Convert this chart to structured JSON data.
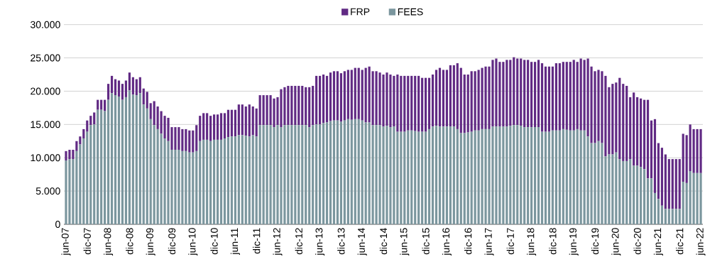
{
  "chart_data": {
    "type": "bar",
    "stacked": true,
    "grid": "y",
    "legend": "top",
    "categories": [
      "jun-07",
      null,
      null,
      null,
      null,
      null,
      "dic-07",
      null,
      null,
      null,
      null,
      null,
      "jun-08",
      null,
      null,
      null,
      null,
      null,
      "dic-08",
      null,
      null,
      null,
      null,
      null,
      "jun-09",
      null,
      null,
      null,
      null,
      null,
      "dic-09",
      null,
      null,
      null,
      null,
      null,
      "jun-10",
      null,
      null,
      null,
      null,
      null,
      "dic-10",
      null,
      null,
      null,
      null,
      null,
      "jun-11",
      null,
      null,
      null,
      null,
      null,
      "dic-11",
      null,
      null,
      null,
      null,
      null,
      "jun-12",
      null,
      null,
      null,
      null,
      null,
      "dic-12",
      null,
      null,
      null,
      null,
      null,
      "jun-13",
      null,
      null,
      null,
      null,
      null,
      "dic-13",
      null,
      null,
      null,
      null,
      null,
      "jun-14",
      null,
      null,
      null,
      null,
      null,
      "dic-14",
      null,
      null,
      null,
      null,
      null,
      "jun-15",
      null,
      null,
      null,
      null,
      null,
      "dic-15",
      null,
      null,
      null,
      null,
      null,
      "jun-16",
      null,
      null,
      null,
      null,
      null,
      "dic-16",
      null,
      null,
      null,
      null,
      null,
      "jun-17",
      null,
      null,
      null,
      null,
      null,
      "dic-17",
      null,
      null,
      null,
      null,
      null,
      "jun-18",
      null,
      null,
      null,
      null,
      null,
      "dic-18",
      null,
      null,
      null,
      null,
      null,
      "jun-19",
      null,
      null,
      null,
      null,
      null,
      "dic-19",
      null,
      null,
      null,
      null,
      null,
      "jun-20",
      null,
      null,
      null,
      null,
      null,
      "dic-20",
      null,
      null,
      null,
      null,
      null,
      "jun-21",
      null,
      null,
      null,
      null,
      null,
      "dic-21",
      null,
      null,
      null,
      null,
      null,
      "jun-22"
    ],
    "ylim": [
      0,
      30000
    ],
    "yticks": [
      {
        "value": 0,
        "label": "0"
      },
      {
        "value": 5000,
        "label": "5.000"
      },
      {
        "value": 10000,
        "label": "10.000"
      },
      {
        "value": 15000,
        "label": "15.000"
      },
      {
        "value": 20000,
        "label": "20.000"
      },
      {
        "value": 25000,
        "label": "25.000"
      },
      {
        "value": 30000,
        "label": "30.000"
      }
    ],
    "series": [
      {
        "name": "FEES",
        "color": "#7b969e",
        "values": [
          9600,
          9800,
          9800,
          11000,
          12000,
          12900,
          13900,
          14900,
          15000,
          17200,
          17200,
          17000,
          18700,
          19700,
          19400,
          19200,
          18700,
          19100,
          20100,
          19500,
          19400,
          19700,
          18000,
          17400,
          15800,
          14900,
          14300,
          13600,
          12900,
          12500,
          11200,
          11200,
          11200,
          11000,
          11000,
          10800,
          10800,
          11000,
          12500,
          12700,
          12700,
          12500,
          12700,
          12700,
          12700,
          12900,
          13100,
          13200,
          13200,
          13400,
          13400,
          13300,
          13200,
          13400,
          13200,
          14900,
          14900,
          14900,
          14900,
          14600,
          14900,
          14600,
          14900,
          14900,
          14900,
          14900,
          14900,
          14900,
          14900,
          14600,
          14900,
          15000,
          15000,
          15200,
          15300,
          15500,
          15600,
          15600,
          15400,
          15600,
          15800,
          15700,
          15800,
          15800,
          15600,
          15300,
          15300,
          14900,
          14900,
          14900,
          14700,
          14800,
          14600,
          14700,
          13900,
          13900,
          13900,
          14100,
          14100,
          14000,
          13900,
          13900,
          13900,
          14300,
          14700,
          14800,
          14700,
          14700,
          14700,
          14700,
          14700,
          14300,
          13700,
          13700,
          13800,
          13900,
          14100,
          14100,
          14300,
          14300,
          14300,
          14700,
          14700,
          14700,
          14700,
          14700,
          14800,
          14900,
          14900,
          14800,
          14600,
          14600,
          14600,
          14600,
          14600,
          13900,
          13900,
          13900,
          14100,
          14100,
          14100,
          14300,
          14200,
          14100,
          14100,
          14300,
          14100,
          14100,
          13200,
          12200,
          12200,
          12500,
          12200,
          10200,
          10500,
          10500,
          10800,
          9800,
          9500,
          9500,
          9800,
          8800,
          8800,
          8600,
          8300,
          6900,
          6900,
          4700,
          3800,
          2800,
          2300,
          2300,
          2300,
          2300,
          2300,
          6400,
          6200,
          8000,
          7700,
          7700,
          7700
        ]
      },
      {
        "name": "FRP",
        "color": "#612a84",
        "values": [
          1400,
          1400,
          1400,
          1500,
          1200,
          1400,
          1700,
          1400,
          1800,
          1500,
          1500,
          1700,
          2400,
          2600,
          2400,
          2400,
          2400,
          2500,
          2700,
          2600,
          2400,
          2400,
          2400,
          2500,
          2400,
          3600,
          3400,
          3400,
          3400,
          3500,
          3400,
          3400,
          3400,
          3300,
          3300,
          3300,
          3300,
          3900,
          3800,
          4000,
          4000,
          3800,
          3800,
          3800,
          4000,
          3800,
          4100,
          4000,
          4000,
          4600,
          4600,
          4400,
          4800,
          4300,
          4200,
          4500,
          4500,
          4500,
          4500,
          4300,
          4200,
          5700,
          5700,
          5900,
          5900,
          5900,
          5900,
          5900,
          5700,
          6000,
          5900,
          7300,
          7300,
          7300,
          7000,
          7300,
          7400,
          7400,
          7300,
          7400,
          7400,
          7500,
          7700,
          7700,
          7600,
          8200,
          8400,
          8100,
          8100,
          7900,
          7800,
          8000,
          7900,
          7600,
          8600,
          8400,
          8400,
          8200,
          8200,
          8300,
          8400,
          8100,
          8100,
          7700,
          7800,
          8400,
          8800,
          8500,
          8500,
          9200,
          9200,
          9900,
          9800,
          8800,
          8700,
          9100,
          8900,
          9100,
          9200,
          9400,
          9400,
          10000,
          10200,
          9700,
          9700,
          10000,
          9900,
          10200,
          10000,
          10100,
          10100,
          10100,
          9800,
          9800,
          10100,
          10300,
          9800,
          9800,
          9600,
          10100,
          10100,
          10100,
          10200,
          10300,
          10600,
          10100,
          10800,
          10600,
          11700,
          11500,
          10800,
          10700,
          10800,
          12100,
          10100,
          10600,
          10500,
          12200,
          11600,
          11300,
          9300,
          11000,
          10300,
          10300,
          10400,
          11800,
          8700,
          11100,
          8400,
          8700,
          8200,
          7500,
          7500,
          7500,
          7500,
          7200,
          7200,
          7000,
          6600,
          6600,
          6600
        ]
      }
    ]
  }
}
